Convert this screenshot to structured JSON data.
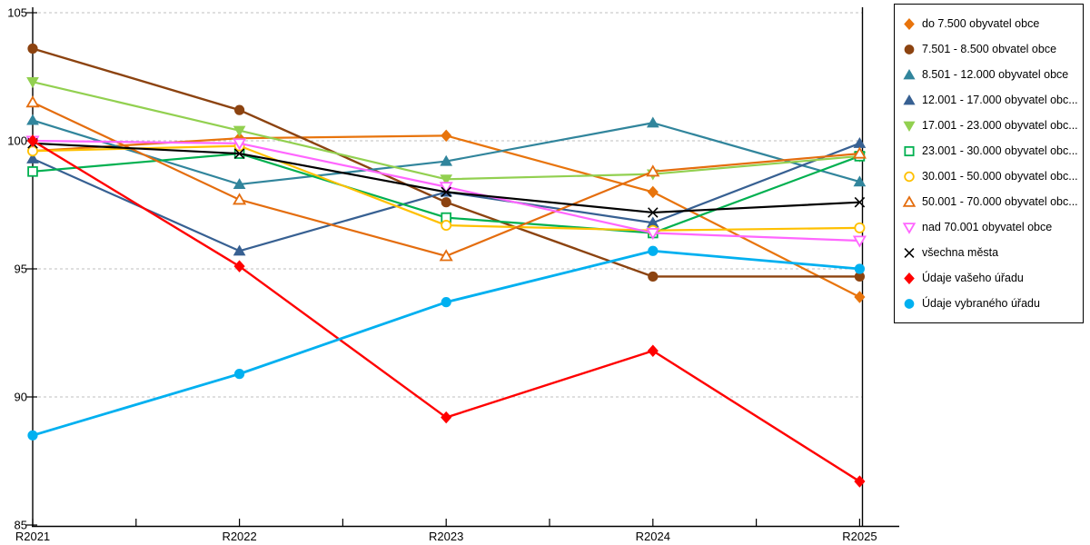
{
  "page": {
    "background": "#FFFFFF"
  },
  "chart_data": {
    "type": "line",
    "title": "",
    "xlabel": "",
    "ylabel": "",
    "x_categories": [
      "R2021",
      "R2022",
      "R2023",
      "R2024",
      "R2025"
    ],
    "y_ticks": [
      85,
      90,
      95,
      100,
      105
    ],
    "ylim": [
      85,
      105
    ],
    "grid": "horizontal-dashed",
    "legend_position": "right",
    "series": [
      {
        "name": "do 7.500 obyvatel obce",
        "marker": "diamond",
        "fill": "solid",
        "color": "#E8740C",
        "line_width": 2.2,
        "values": [
          99.6,
          100.1,
          100.2,
          98.0,
          93.9
        ]
      },
      {
        "name": "7.501 - 8.500 obvatel obce",
        "marker": "circle",
        "fill": "solid",
        "color": "#8C4310",
        "line_width": 2.4,
        "values": [
          103.6,
          101.2,
          97.6,
          94.7,
          94.7
        ]
      },
      {
        "name": "8.501 - 12.000 obyvatel obce",
        "marker": "triangle-up",
        "fill": "solid",
        "color": "#31859C",
        "line_width": 2.2,
        "values": [
          100.8,
          98.3,
          99.2,
          100.7,
          98.4
        ]
      },
      {
        "name": "12.001 - 17.000 obyvatel obc...",
        "marker": "triangle-up",
        "fill": "solid",
        "color": "#376092",
        "line_width": 2.2,
        "values": [
          99.3,
          95.7,
          98.0,
          96.8,
          99.9
        ]
      },
      {
        "name": "17.001 - 23.000 obyvatel obc...",
        "marker": "triangle-down",
        "fill": "solid",
        "color": "#92D050",
        "line_width": 2.2,
        "values": [
          102.3,
          100.4,
          98.5,
          98.7,
          99.4
        ]
      },
      {
        "name": "23.001 - 30.000 obyvatel obc...",
        "marker": "square",
        "fill": "open",
        "color": "#00B050",
        "line_width": 2.2,
        "values": [
          98.8,
          99.5,
          97.0,
          96.4,
          99.4
        ]
      },
      {
        "name": "30.001 - 50.000 obyvatel obc...",
        "marker": "circle",
        "fill": "open",
        "color": "#FFC000",
        "line_width": 2.2,
        "values": [
          99.6,
          99.8,
          96.7,
          96.5,
          96.6
        ]
      },
      {
        "name": "50.001 - 70.000 obyvatel obc...",
        "marker": "triangle-up",
        "fill": "open",
        "color": "#E46D0E",
        "line_width": 2.2,
        "values": [
          101.5,
          97.7,
          95.5,
          98.8,
          99.5
        ]
      },
      {
        "name": "nad 70.001 obyvatel obce",
        "marker": "triangle-down",
        "fill": "open",
        "color": "#FF66FF",
        "line_width": 2.2,
        "values": [
          100.0,
          99.9,
          98.2,
          96.4,
          96.1
        ]
      },
      {
        "name": "všechna města",
        "marker": "x",
        "fill": "line",
        "color": "#000000",
        "line_width": 2.2,
        "values": [
          99.9,
          99.5,
          98.0,
          97.2,
          97.6
        ]
      },
      {
        "name": "Údaje vašeho úřadu",
        "marker": "diamond",
        "fill": "solid",
        "color": "#FF0000",
        "line_width": 2.4,
        "values": [
          100.0,
          95.1,
          89.2,
          91.8,
          86.7
        ]
      },
      {
        "name": "Údaje vybraného úřadu",
        "marker": "circle",
        "fill": "solid",
        "color": "#00B0F0",
        "line_width": 2.8,
        "values": [
          88.5,
          90.9,
          93.7,
          95.7,
          95.0
        ]
      }
    ]
  },
  "styles": {
    "grid_color": "#BFBFBF",
    "axis_color": "#000000",
    "legend_border_color": "#000000",
    "open_marker_inner": "#FFFFFF"
  }
}
